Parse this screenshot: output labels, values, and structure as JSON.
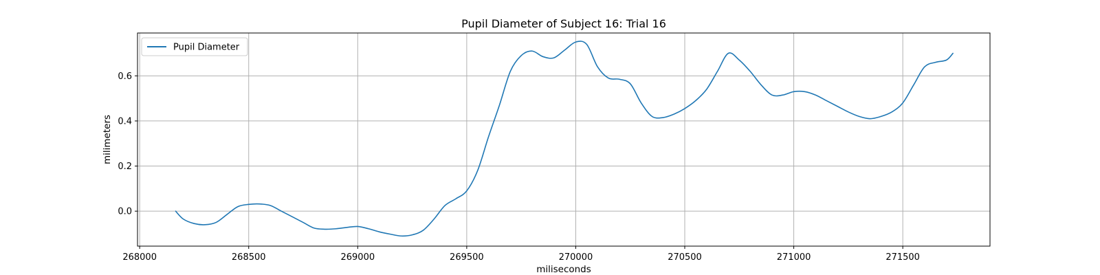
{
  "chart_data": {
    "type": "line",
    "title": "Pupil Diameter of Subject 16: Trial 16",
    "xlabel": "miliseconds",
    "ylabel": "milimeters",
    "xlim": [
      267990,
      271900
    ],
    "ylim": [
      -0.155,
      0.79
    ],
    "xticks": [
      268000,
      268500,
      269000,
      269500,
      270000,
      270500,
      271000,
      271500
    ],
    "yticks": [
      0.0,
      0.2,
      0.4,
      0.6
    ],
    "ytick_labels": [
      "0.0",
      "0.2",
      "0.4",
      "0.6"
    ],
    "grid": true,
    "legend_position": "top-left",
    "series": [
      {
        "name": "Pupil Diameter",
        "color": "#1f77b4",
        "x": [
          268165,
          268200,
          268250,
          268300,
          268350,
          268400,
          268450,
          268500,
          268550,
          268600,
          268650,
          268700,
          268750,
          268800,
          268850,
          268900,
          268950,
          269000,
          269050,
          269100,
          269150,
          269200,
          269250,
          269300,
          269350,
          269400,
          269450,
          269500,
          269550,
          269600,
          269650,
          269700,
          269750,
          269800,
          269850,
          269900,
          269950,
          270000,
          270050,
          270100,
          270150,
          270200,
          270250,
          270300,
          270350,
          270400,
          270450,
          270500,
          270550,
          270600,
          270650,
          270700,
          270750,
          270800,
          270850,
          270900,
          270950,
          271000,
          271050,
          271100,
          271150,
          271200,
          271250,
          271300,
          271350,
          271400,
          271450,
          271500,
          271550,
          271600,
          271650,
          271700,
          271730
        ],
        "y": [
          0.0,
          -0.035,
          -0.055,
          -0.06,
          -0.05,
          -0.015,
          0.02,
          0.03,
          0.032,
          0.025,
          0.0,
          -0.025,
          -0.05,
          -0.075,
          -0.08,
          -0.078,
          -0.072,
          -0.068,
          -0.078,
          -0.092,
          -0.102,
          -0.11,
          -0.105,
          -0.085,
          -0.035,
          0.025,
          0.055,
          0.09,
          0.18,
          0.33,
          0.47,
          0.62,
          0.69,
          0.71,
          0.685,
          0.68,
          0.715,
          0.75,
          0.74,
          0.64,
          0.59,
          0.585,
          0.565,
          0.48,
          0.42,
          0.415,
          0.43,
          0.455,
          0.49,
          0.54,
          0.62,
          0.7,
          0.67,
          0.62,
          0.56,
          0.515,
          0.515,
          0.53,
          0.53,
          0.515,
          0.49,
          0.465,
          0.44,
          0.42,
          0.41,
          0.42,
          0.44,
          0.48,
          0.56,
          0.64,
          0.66,
          0.67,
          0.7
        ]
      }
    ]
  }
}
